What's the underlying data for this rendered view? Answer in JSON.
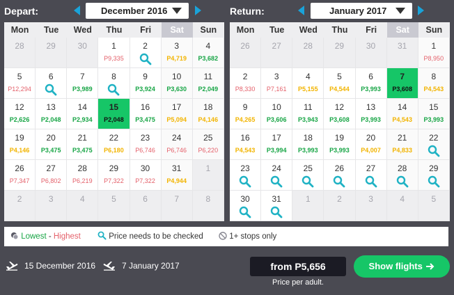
{
  "depart": {
    "title": "Depart:",
    "month": "December 2016",
    "weekdays": [
      "Mon",
      "Tue",
      "Wed",
      "Thu",
      "Fri",
      "Sat",
      "Sun"
    ],
    "weeks": [
      [
        {
          "d": "28",
          "muted": true
        },
        {
          "d": "29",
          "muted": true
        },
        {
          "d": "30",
          "muted": true
        },
        {
          "d": "1",
          "p": "P9,335",
          "c": "high"
        },
        {
          "d": "2",
          "search": true
        },
        {
          "d": "3",
          "p": "P4,719",
          "c": "mid"
        },
        {
          "d": "4",
          "p": "P3,682",
          "c": "low"
        }
      ],
      [
        {
          "d": "5",
          "p": "P12,294",
          "c": "high"
        },
        {
          "d": "6",
          "search": true
        },
        {
          "d": "7",
          "p": "P3,989",
          "c": "low"
        },
        {
          "d": "8",
          "search": true
        },
        {
          "d": "9",
          "p": "P3,924",
          "c": "low"
        },
        {
          "d": "10",
          "p": "P3,630",
          "c": "low"
        },
        {
          "d": "11",
          "p": "P2,049",
          "c": "low"
        }
      ],
      [
        {
          "d": "12",
          "p": "P2,626",
          "c": "low"
        },
        {
          "d": "13",
          "p": "P2,048",
          "c": "low"
        },
        {
          "d": "14",
          "p": "P2,934",
          "c": "low"
        },
        {
          "d": "15",
          "p": "P2,048",
          "c": "low",
          "sel": true
        },
        {
          "d": "16",
          "p": "P3,475",
          "c": "low"
        },
        {
          "d": "17",
          "p": "P5,094",
          "c": "mid"
        },
        {
          "d": "18",
          "p": "P4,146",
          "c": "mid"
        }
      ],
      [
        {
          "d": "19",
          "p": "P4,146",
          "c": "mid"
        },
        {
          "d": "20",
          "p": "P3,475",
          "c": "low"
        },
        {
          "d": "21",
          "p": "P3,475",
          "c": "low"
        },
        {
          "d": "22",
          "p": "P6,180",
          "c": "mid"
        },
        {
          "d": "23",
          "p": "P6,746",
          "c": "high"
        },
        {
          "d": "24",
          "p": "P6,746",
          "c": "high"
        },
        {
          "d": "25",
          "p": "P6,220",
          "c": "high"
        }
      ],
      [
        {
          "d": "26",
          "p": "P7,347",
          "c": "high"
        },
        {
          "d": "27",
          "p": "P6,802",
          "c": "high"
        },
        {
          "d": "28",
          "p": "P6,219",
          "c": "high"
        },
        {
          "d": "29",
          "p": "P7,322",
          "c": "high"
        },
        {
          "d": "30",
          "p": "P7,322",
          "c": "high"
        },
        {
          "d": "31",
          "p": "P4,944",
          "c": "mid"
        },
        {
          "d": "1",
          "muted": true
        }
      ],
      [
        {
          "d": "2",
          "muted": true
        },
        {
          "d": "3",
          "muted": true
        },
        {
          "d": "4",
          "muted": true
        },
        {
          "d": "5",
          "muted": true
        },
        {
          "d": "6",
          "muted": true
        },
        {
          "d": "7",
          "muted": true
        },
        {
          "d": "8",
          "muted": true
        }
      ]
    ]
  },
  "return": {
    "title": "Return:",
    "month": "January 2017",
    "weekdays": [
      "Mon",
      "Tue",
      "Wed",
      "Thu",
      "Fri",
      "Sat",
      "Sun"
    ],
    "weeks": [
      [
        {
          "d": "26",
          "muted": true
        },
        {
          "d": "27",
          "muted": true
        },
        {
          "d": "28",
          "muted": true
        },
        {
          "d": "29",
          "muted": true
        },
        {
          "d": "30",
          "muted": true
        },
        {
          "d": "31",
          "muted": true
        },
        {
          "d": "1",
          "p": "P8,950",
          "c": "high"
        }
      ],
      [
        {
          "d": "2",
          "p": "P8,330",
          "c": "high"
        },
        {
          "d": "3",
          "p": "P7,161",
          "c": "high"
        },
        {
          "d": "4",
          "p": "P5,155",
          "c": "mid"
        },
        {
          "d": "5",
          "p": "P4,544",
          "c": "mid"
        },
        {
          "d": "6",
          "p": "P3,993",
          "c": "low"
        },
        {
          "d": "7",
          "p": "P3,608",
          "c": "low",
          "sel": true
        },
        {
          "d": "8",
          "p": "P4,543",
          "c": "mid"
        }
      ],
      [
        {
          "d": "9",
          "p": "P4,265",
          "c": "mid"
        },
        {
          "d": "10",
          "p": "P3,606",
          "c": "low"
        },
        {
          "d": "11",
          "p": "P3,943",
          "c": "low"
        },
        {
          "d": "12",
          "p": "P3,608",
          "c": "low"
        },
        {
          "d": "13",
          "p": "P3,993",
          "c": "low"
        },
        {
          "d": "14",
          "p": "P4,543",
          "c": "mid"
        },
        {
          "d": "15",
          "p": "P3,993",
          "c": "low"
        }
      ],
      [
        {
          "d": "16",
          "p": "P4,543",
          "c": "mid"
        },
        {
          "d": "17",
          "p": "P3,994",
          "c": "low"
        },
        {
          "d": "18",
          "p": "P3,993",
          "c": "low"
        },
        {
          "d": "19",
          "p": "P3,993",
          "c": "low"
        },
        {
          "d": "20",
          "p": "P4,007",
          "c": "mid"
        },
        {
          "d": "21",
          "p": "P4,833",
          "c": "mid"
        },
        {
          "d": "22",
          "search": true
        }
      ],
      [
        {
          "d": "23",
          "search": true
        },
        {
          "d": "24",
          "search": true
        },
        {
          "d": "25",
          "search": true
        },
        {
          "d": "26",
          "search": true
        },
        {
          "d": "27",
          "search": true
        },
        {
          "d": "28",
          "search": true
        },
        {
          "d": "29",
          "search": true
        }
      ],
      [
        {
          "d": "30",
          "search": true
        },
        {
          "d": "31",
          "search": true
        },
        {
          "d": "1",
          "muted": true
        },
        {
          "d": "2",
          "muted": true
        },
        {
          "d": "3",
          "muted": true
        },
        {
          "d": "4",
          "muted": true
        },
        {
          "d": "5",
          "muted": true
        }
      ]
    ]
  },
  "legend": {
    "lowest": "Lowest",
    "dash": " - ",
    "highest": "Highest",
    "check": "Price needs to be checked",
    "stops": "1+ stops only"
  },
  "footer": {
    "depart_date": "15 December 2016",
    "return_date": "7 January 2017",
    "from_price": "from P5,656",
    "per_adult": "Price per adult.",
    "show_flights": "Show flights"
  },
  "colors": {
    "accent": "#16c667",
    "arrow": "#1aa3d9",
    "search_icon": "#1fb2c4",
    "low": "#17a545",
    "mid": "#f2b400",
    "high": "#e4606a"
  }
}
